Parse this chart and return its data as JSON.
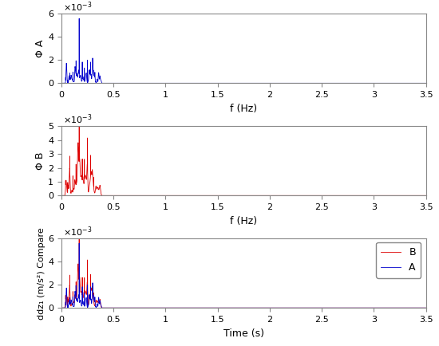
{
  "subplot1_ylabel": "Φ A",
  "subplot2_ylabel": "Φ B",
  "subplot3_ylabel": "ddz₁ (m/s²) Compare",
  "xlabel_top": "f (Hz)",
  "xlabel_mid": "f (Hz)",
  "xlabel_bot": "Time (s)",
  "xlim": [
    0,
    3.5
  ],
  "ylim1": [
    0,
    0.006
  ],
  "ylim2": [
    0,
    0.005
  ],
  "ylim3": [
    0,
    0.006
  ],
  "color_blue": "#0000cc",
  "color_red": "#dd0000",
  "legend_labels": [
    "B",
    "A"
  ],
  "background": "#ffffff",
  "spine_color": "#888888"
}
